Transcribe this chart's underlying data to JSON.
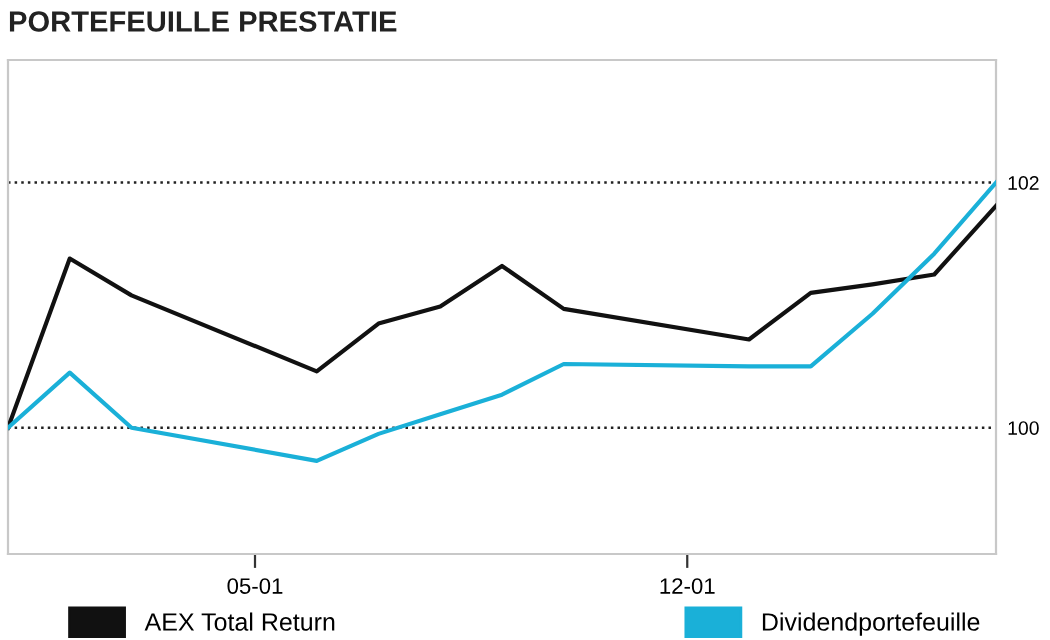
{
  "chart_data": {
    "type": "line",
    "title": "PORTEFEUILLE PRESTATIE",
    "x": [
      "--01-01",
      "--01-02",
      "--01-03",
      "--01-06",
      "--01-07",
      "--01-08",
      "--01-09",
      "--01-10",
      "--01-13",
      "--01-14",
      "--01-15",
      "--01-16",
      "--01-17"
    ],
    "series": [
      {
        "name": "AEX Total Return",
        "color": "#111111",
        "values": [
          100,
          101.38,
          101.08,
          100.46,
          100.85,
          100.99,
          101.32,
          100.97,
          100.72,
          101.1,
          101.17,
          101.25,
          101.81
        ]
      },
      {
        "name": "Dividendportefeuille",
        "color": "#1ab0d8",
        "values": [
          100,
          100.45,
          100.0,
          99.73,
          99.95,
          100.11,
          100.27,
          100.52,
          100.5,
          100.5,
          100.93,
          101.42,
          102.0
        ]
      }
    ],
    "xlim": [
      "--01-01",
      "--01-17"
    ],
    "xticks": [
      {
        "value": "--01-05",
        "label": "05-01"
      },
      {
        "value": "--01-12",
        "label": "12-01"
      }
    ],
    "ylim": [
      98.97,
      103.0
    ],
    "yticks": [
      100,
      102
    ],
    "grid": "y",
    "legend": "bottom",
    "marker": "none",
    "line_style": "solid"
  }
}
